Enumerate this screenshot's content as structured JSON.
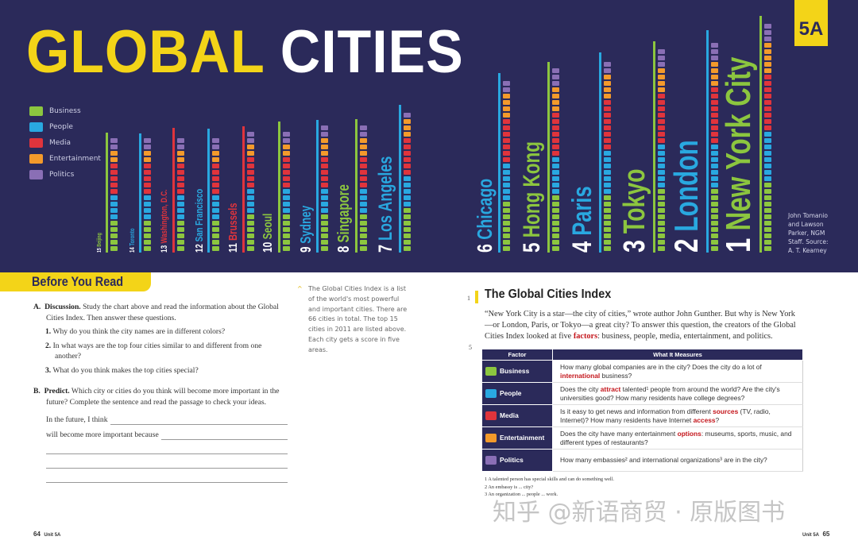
{
  "header": {
    "title_part1": "GLOBAL",
    "title_part2": "CITIES",
    "unit_badge": "5A"
  },
  "legend": [
    {
      "label": "Business",
      "color": "#8cc63f",
      "icon": "dollar-icon"
    },
    {
      "label": "People",
      "color": "#29a8e0",
      "icon": "people-icon"
    },
    {
      "label": "Media",
      "color": "#e0343c",
      "icon": "media-icon"
    },
    {
      "label": "Entertainment",
      "color": "#f39a2b",
      "icon": "theater-masks-icon"
    },
    {
      "label": "Politics",
      "color": "#8a6fb5",
      "icon": "capitol-icon"
    }
  ],
  "cities": [
    {
      "rank": "15",
      "name": "Beijing",
      "color": "#8cc63f"
    },
    {
      "rank": "14",
      "name": "Toronto",
      "color": "#29a8e0"
    },
    {
      "rank": "13",
      "name": "Washington, D.C.",
      "color": "#e0343c"
    },
    {
      "rank": "12",
      "name": "San Francisco",
      "color": "#29a8e0"
    },
    {
      "rank": "11",
      "name": "Brussels",
      "color": "#e0343c"
    },
    {
      "rank": "10",
      "name": "Seoul",
      "color": "#8cc63f"
    },
    {
      "rank": "9",
      "name": "Sydney",
      "color": "#29a8e0"
    },
    {
      "rank": "8",
      "name": "Singapore",
      "color": "#8cc63f"
    },
    {
      "rank": "7",
      "name": "Los Angeles",
      "color": "#29a8e0"
    },
    {
      "rank": "6",
      "name": "Chicago",
      "color": "#29a8e0"
    },
    {
      "rank": "5",
      "name": "Hong Kong",
      "color": "#8cc63f"
    },
    {
      "rank": "4",
      "name": "Paris",
      "color": "#29a8e0"
    },
    {
      "rank": "3",
      "name": "Tokyo",
      "color": "#8cc63f"
    },
    {
      "rank": "2",
      "name": "London",
      "color": "#29a8e0"
    },
    {
      "rank": "1",
      "name": "New York City",
      "color": "#8cc63f"
    }
  ],
  "credit": "John Tomanio and Lawson Parker, NGM Staff. Source: A. T. Kearney",
  "before_you_read": {
    "heading": "Before You Read",
    "a_label": "A.",
    "a_title": "Discussion.",
    "a_text": "Study the chart above and read the information about the Global Cities Index. Then answer these questions.",
    "questions": [
      {
        "num": "1.",
        "text": "Why do you think the city names are in different colors?"
      },
      {
        "num": "2.",
        "text": "In what ways are the top four cities similar to and different from one another?"
      },
      {
        "num": "3.",
        "text": "What do you think makes the top cities special?"
      }
    ],
    "b_label": "B.",
    "b_title": "Predict.",
    "b_text": "Which city or cities do you think will become more important in the future? Complete the sentence and read the passage to check your ideas.",
    "sentence1": "In the future, I think",
    "sentence2": "will become more important because"
  },
  "side_note": "The Global Cities Index is a list of the world's most powerful and important cities. There are 66 cities in total. The top 15 cities in 2011 are listed above. Each city gets a score in five areas.",
  "reading": {
    "title": "The Global Cities Index",
    "line_1": "1",
    "line_5": "5",
    "p1": "“New York City is a star—the city of cities,” wrote author John Gunther. But why is New York—or London, Paris, or Tokyo—a great city? To answer this question, the creators of the Global Cities Index looked at five ",
    "p1_key": "factors",
    "p1_end": ": business, people, media, entertainment, and politics."
  },
  "table": {
    "col1": "Factor",
    "col2": "What It Measures",
    "rows": [
      {
        "factor": "Business",
        "a": "How many global companies are in the city? Does the city do a lot of ",
        "k": "international",
        "b": " business?"
      },
      {
        "factor": "People",
        "a": "Does the city ",
        "k": "attract",
        "b": " talented¹ people from around the world? Are the city's universities good? How many residents have college degrees?"
      },
      {
        "factor": "Media",
        "a": "Is it easy to get news and information from different ",
        "k": "sources",
        "b": " (TV, radio, Internet)? How many residents have Internet ",
        "k2": "access",
        "c": "?"
      },
      {
        "factor": "Entertainment",
        "a": "Does the city have many entertainment ",
        "k": "options",
        "b": ": museums, sports, music, and different types of restaurants?"
      },
      {
        "factor": "Politics",
        "a": "How many embassies² and international organizations³ are in the city?",
        "k": "",
        "b": ""
      }
    ]
  },
  "footnotes": [
    "1 A talented person has special skills and can do something well.",
    "2 An embassy is ... city?",
    "3 An organization ... people ... work."
  ],
  "watermark": "知乎 @新语商贸 · 原版图书",
  "page_left": "64",
  "unit_left": "Unit 5A",
  "page_right": "65",
  "unit_right": "Unit 5A"
}
